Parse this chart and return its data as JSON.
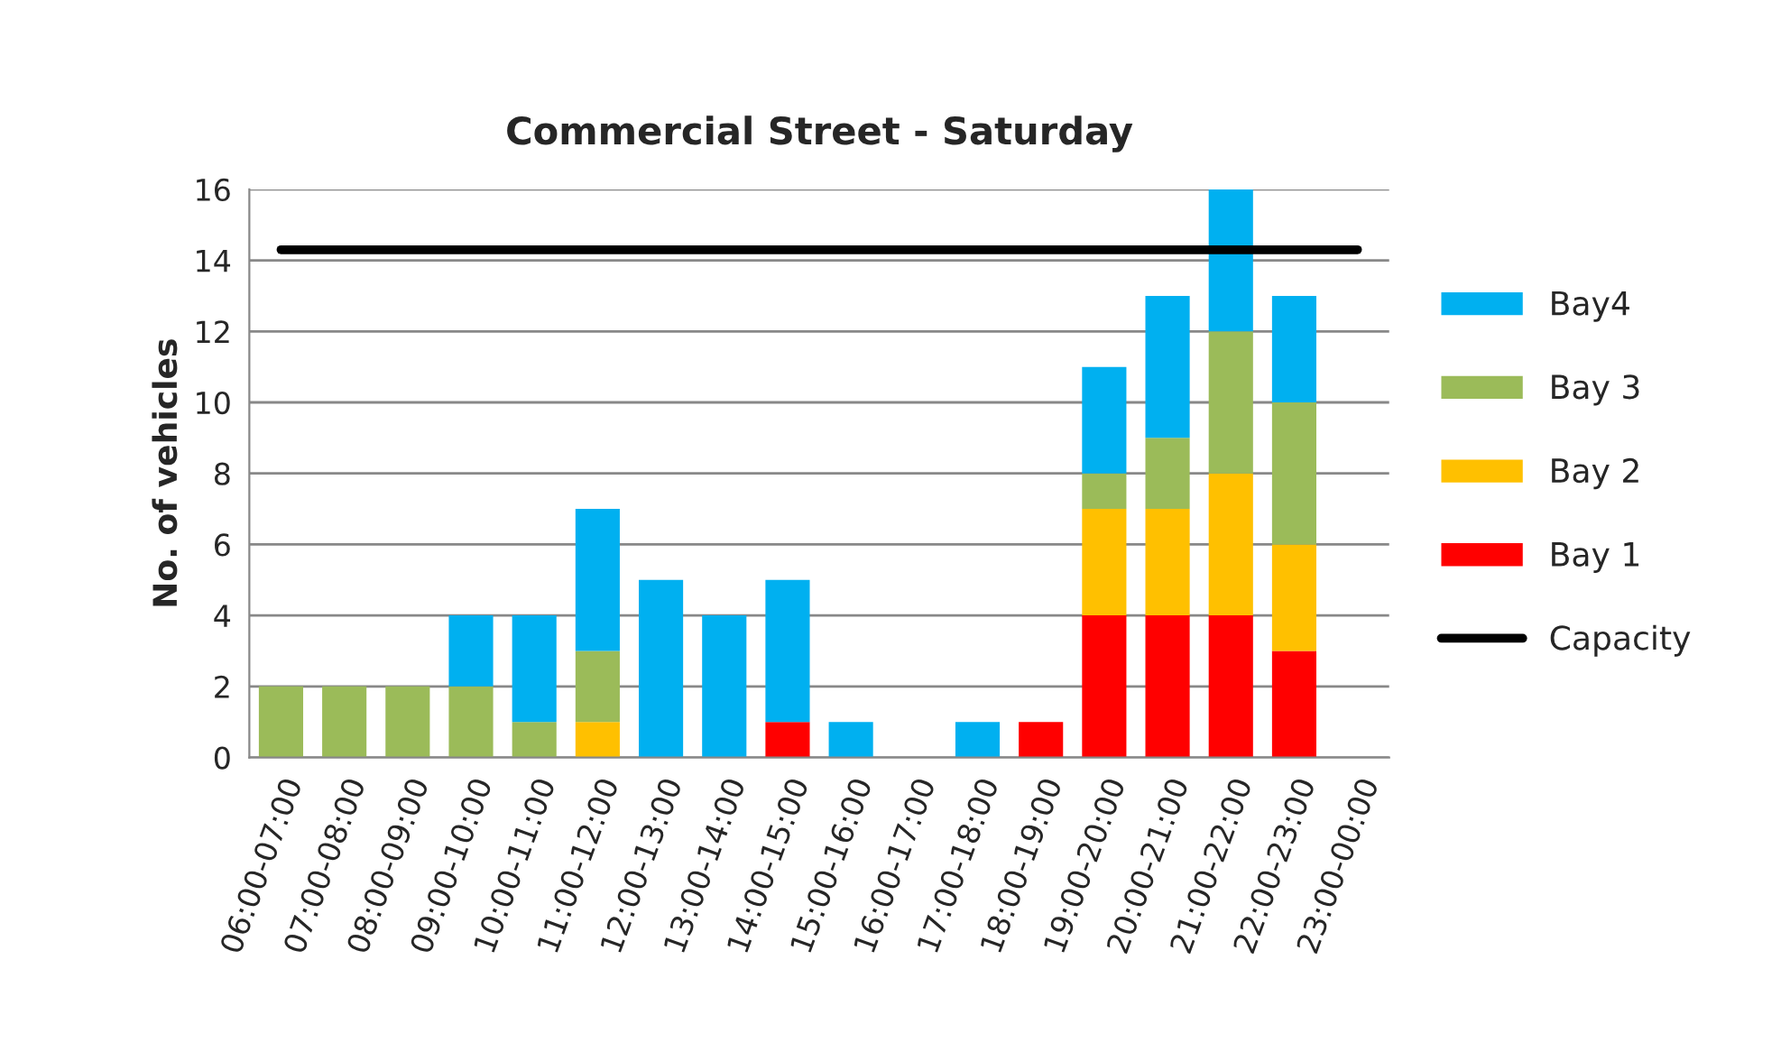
{
  "chart_data": {
    "type": "bar",
    "title": "Commercial Street - Saturday",
    "ylabel": "No. of vehicles",
    "categories": [
      "06:00-07:00",
      "07:00-08:00",
      "08:00-09:00",
      "09:00-10:00",
      "10:00-11:00",
      "11:00-12:00",
      "12:00-13:00",
      "13:00-14:00",
      "14:00-15:00",
      "15:00-16:00",
      "16:00-17:00",
      "17:00-18:00",
      "18:00-19:00",
      "19:00-20:00",
      "20:00-21:00",
      "21:00-22:00",
      "22:00-23:00",
      "23:00-00:00"
    ],
    "stacked": true,
    "series": [
      {
        "name": "Bay 1",
        "color": "#ff0000",
        "values": [
          0,
          0,
          0,
          0,
          0,
          0,
          0,
          0,
          1,
          0,
          0,
          0,
          1,
          4,
          4,
          4,
          3,
          0
        ]
      },
      {
        "name": "Bay 2",
        "color": "#ffc000",
        "values": [
          0,
          0,
          0,
          0,
          0,
          1,
          0,
          0,
          0,
          0,
          0,
          0,
          0,
          3,
          3,
          4,
          3,
          0
        ]
      },
      {
        "name": "Bay 3",
        "color": "#9bbb59",
        "values": [
          2,
          2,
          2,
          2,
          1,
          2,
          0,
          0,
          0,
          0,
          0,
          0,
          0,
          1,
          2,
          4,
          4,
          0
        ]
      },
      {
        "name": "Bay4",
        "color": "#00b0f0",
        "values": [
          0,
          0,
          0,
          2,
          3,
          4,
          5,
          4,
          4,
          1,
          0,
          1,
          0,
          3,
          4,
          4,
          3,
          0
        ]
      },
      {
        "name": "Capacity",
        "type": "line",
        "color": "#000000",
        "values": [
          14.3,
          14.3,
          14.3,
          14.3,
          14.3,
          14.3,
          14.3,
          14.3,
          14.3,
          14.3,
          14.3,
          14.3,
          14.3,
          14.3,
          14.3,
          14.3,
          14.3,
          14.3
        ]
      }
    ],
    "ylim": [
      0,
      16
    ],
    "yticks": [
      0,
      2,
      4,
      6,
      8,
      10,
      12,
      14,
      16
    ],
    "grid": "y",
    "legend": "right"
  }
}
